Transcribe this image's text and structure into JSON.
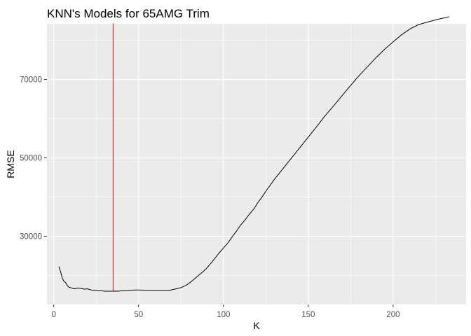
{
  "chart_data": {
    "type": "line",
    "title": "KNN's Models for 65AMG Trim",
    "xlabel": "K",
    "ylabel": "RMSE",
    "xlim": [
      -4,
      243
    ],
    "ylim": [
      12600,
      84200
    ],
    "x_ticks": [
      0,
      50,
      100,
      150,
      200
    ],
    "y_ticks": [
      30000,
      50000,
      70000
    ],
    "x_tick_labels": [
      "0",
      "50",
      "100",
      "150",
      "200"
    ],
    "y_tick_labels": [
      "30000",
      "50000",
      "70000"
    ],
    "grid": true,
    "legend": "none",
    "colors": {
      "panel": "#ebebeb",
      "grid": "#ffffff",
      "series": "#000000",
      "vline": "#ff0000"
    },
    "series": [
      {
        "x": [
          3,
          4,
          5,
          6,
          7,
          8,
          9,
          10,
          12,
          14,
          16,
          18,
          20,
          22,
          24,
          26,
          28,
          30,
          32,
          34,
          35,
          38,
          40,
          42,
          45,
          48,
          50,
          55,
          60,
          65,
          68,
          70,
          72,
          75,
          78,
          80,
          82,
          85,
          88,
          90,
          93,
          95,
          97,
          100,
          103,
          105,
          108,
          110,
          113,
          115,
          118,
          120,
          123,
          125,
          130,
          135,
          140,
          145,
          150,
          155,
          160,
          165,
          170,
          175,
          180,
          185,
          190,
          195,
          200,
          205,
          210,
          215,
          220,
          225,
          230,
          233
        ],
        "values": [
          22300,
          21000,
          19400,
          18500,
          18200,
          17400,
          17000,
          16900,
          16600,
          16800,
          16700,
          16500,
          16600,
          16300,
          16200,
          16100,
          16100,
          16000,
          16000,
          16000,
          16000,
          16000,
          16100,
          16100,
          16200,
          16300,
          16300,
          16200,
          16200,
          16200,
          16200,
          16400,
          16600,
          16900,
          17500,
          18100,
          18800,
          19900,
          21000,
          21800,
          23300,
          24400,
          25500,
          27000,
          28500,
          29800,
          31500,
          32800,
          34300,
          35500,
          37000,
          38400,
          40200,
          41500,
          44500,
          47200,
          49900,
          52600,
          55300,
          58000,
          60800,
          63300,
          65900,
          68500,
          71000,
          73300,
          75600,
          77700,
          79600,
          81400,
          82900,
          84000,
          84600,
          85200,
          85700,
          86000
        ]
      }
    ],
    "vline": {
      "x": 35,
      "y_from": 16000,
      "y_to": 84300
    }
  }
}
